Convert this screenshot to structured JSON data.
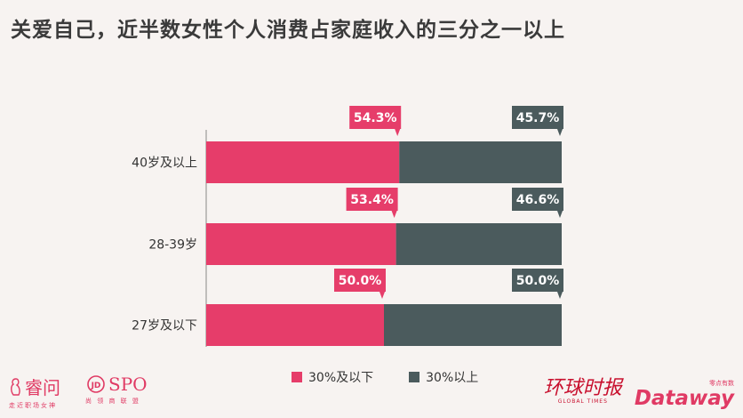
{
  "title": "关爱自己，近半数女性个人消费占家庭收入的三分之一以上",
  "chart_data": {
    "type": "bar",
    "orientation": "horizontal",
    "stacked": true,
    "categories": [
      "40岁及以上",
      "28-39岁",
      "27岁及以下"
    ],
    "series": [
      {
        "name": "30%及以下",
        "values": [
          54.3,
          53.4,
          50.0
        ],
        "labels": [
          "54.3%",
          "53.4%",
          "50.0%"
        ],
        "color": "#e63d6a"
      },
      {
        "name": "30%以上",
        "values": [
          45.7,
          46.6,
          50.0
        ],
        "labels": [
          "45.7%",
          "46.6%",
          "50.0%"
        ],
        "color": "#4b5b5d"
      }
    ],
    "xlim": [
      0,
      100
    ],
    "legend_position": "bottom"
  },
  "logos": {
    "left1": {
      "text": "睿问",
      "sub": "走近职场女神"
    },
    "left2": {
      "text": "SPO",
      "sub": "尚 领 商 联 盟"
    },
    "right1": {
      "text": "环球时报",
      "sub": "GLOBAL TIMES"
    },
    "right2": {
      "text": "Dataway",
      "sub": "零点有数"
    }
  }
}
